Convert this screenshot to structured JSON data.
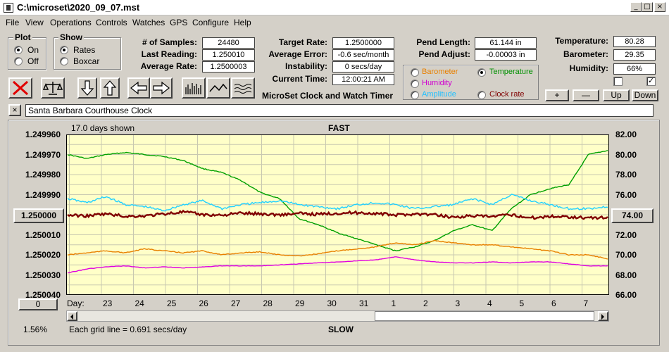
{
  "window": {
    "title": "C:\\microset\\2020_09_07.mst",
    "min": "_",
    "max": "□",
    "close": "×"
  },
  "menu": [
    "File",
    "View",
    "Operations",
    "Controls",
    "Watches",
    "GPS",
    "Configure",
    "Help"
  ],
  "plot_group": {
    "title": "Plot",
    "on": "On",
    "off": "Off",
    "selected": "On"
  },
  "show_group": {
    "title": "Show",
    "rates": "Rates",
    "boxcar": "Boxcar",
    "selected": "Rates"
  },
  "stats": {
    "samples_label": "# of Samples:",
    "samples": "24480",
    "last_label": "Last Reading:",
    "last": "1.250010",
    "avg_label": "Average Rate:",
    "avg": "1.2500003",
    "target_label": "Target Rate:",
    "target": "1.2500000",
    "avgerr_label": "Average Error:",
    "avgerr": "-0.6 sec/month",
    "instab_label": "Instability:",
    "instab": "0 secs/day",
    "time_label": "Current Time:",
    "time": "12:00:21 AM",
    "pendlen_label": "Pend Length:",
    "pendlen": "61.144 in",
    "pendadj_label": "Pend Adjust:",
    "pendadj": "-0.00003 in",
    "temp_label": "Temperature:",
    "temp": "80.28",
    "baro_label": "Barometer:",
    "baro": "29.35",
    "hum_label": "Humidity:",
    "hum": "66%"
  },
  "product_title": "MicroSet Clock and Watch Timer",
  "sensors": {
    "barometer": {
      "label": "Barometer",
      "color": "#e88000"
    },
    "temperature": {
      "label": "Temperature",
      "color": "#009000",
      "selected": true
    },
    "humidity": {
      "label": "Humidity",
      "color": "#d000d0"
    },
    "amplitude": {
      "label": "Amplitude",
      "color": "#20c0ff"
    },
    "clockrate": {
      "label": "Clock rate",
      "color": "#800000"
    }
  },
  "adjust_buttons": {
    "plus": "+",
    "minus": "—",
    "up": "Up",
    "down": "Down"
  },
  "description": {
    "close": "×",
    "text": "Santa Barbara Courthouse Clock"
  },
  "chart_data": {
    "type": "line",
    "top_label": "FAST",
    "bottom_label": "SLOW",
    "days_shown": "17.0 days shown",
    "grid_note": "Each grid line = 0.691 secs/day",
    "zoom": "1.56%",
    "x_title": "Day:",
    "x_ticks": [
      "23",
      "24",
      "25",
      "26",
      "27",
      "28",
      "29",
      "30",
      "31",
      "1",
      "2",
      "3",
      "4",
      "5",
      "6",
      "7"
    ],
    "left_ticks": [
      "1.249960",
      "1.249970",
      "1.249980",
      "1.249990",
      "1.250000",
      "1.250010",
      "1.250020",
      "1.250030",
      "1.250040"
    ],
    "left_center_button": "1.250000",
    "left_ylim": [
      1.24996,
      1.25004
    ],
    "right_ticks": [
      "82.00",
      "80.00",
      "78.00",
      "76.00",
      "74.00",
      "72.00",
      "70.00",
      "68.00",
      "66.00"
    ],
    "right_center_button": "74.00",
    "right_ylim": [
      66,
      82
    ],
    "offset_button": "0",
    "plot_bg": "#ffffc8",
    "grid": true,
    "series": [
      {
        "key": "temperature",
        "color": "#00a000",
        "values": [
          80.0,
          79.6,
          80.0,
          80.2,
          80.0,
          79.8,
          79.4,
          78.6,
          78.2,
          77.4,
          76.2,
          75.6,
          73.6,
          73.0,
          72.2,
          71.6,
          71.0,
          70.4,
          70.8,
          71.4,
          72.4,
          73.0,
          72.4,
          74.6,
          76.0,
          76.6,
          77.0,
          80.0,
          80.4
        ]
      },
      {
        "key": "amplitude",
        "color": "#20d0ff",
        "values": [
          75.6,
          75.2,
          75.8,
          75.0,
          74.8,
          74.4,
          75.0,
          75.4,
          74.6,
          75.0,
          75.2,
          75.4,
          75.0,
          74.8,
          74.6,
          75.0,
          75.2,
          75.0,
          74.6,
          74.8,
          75.0,
          75.6,
          75.0,
          76.0,
          75.4,
          75.0,
          74.6,
          74.6,
          74.8
        ]
      },
      {
        "key": "clockrate",
        "color": "#800000",
        "values": [
          1.2500002,
          1.2500006,
          1.2499996,
          1.2500008,
          1.2500006,
          1.2499996,
          1.2499986,
          1.25,
          1.2500002,
          1.2499992,
          1.2499996,
          1.25,
          1.2499994,
          1.2499998,
          1.2499992,
          1.249999,
          1.2499994,
          1.2500002,
          1.2499996,
          1.25,
          1.2500012,
          1.2500006,
          1.250001,
          1.25,
          1.2500016,
          1.2500008,
          1.250001,
          1.2500016,
          1.2500014
        ]
      },
      {
        "key": "barometer",
        "color": "#e88000",
        "values": [
          70.0,
          70.2,
          70.4,
          70.2,
          70.6,
          70.4,
          70.2,
          70.4,
          70.0,
          70.2,
          70.3,
          70.0,
          69.9,
          70.1,
          70.4,
          70.6,
          70.8,
          71.2,
          71.0,
          71.4,
          71.2,
          71.0,
          71.0,
          70.8,
          70.6,
          70.4,
          70.0,
          70.0,
          69.6
        ]
      },
      {
        "key": "humidity",
        "color": "#e000e0",
        "values": [
          68.2,
          68.6,
          68.8,
          68.9,
          68.7,
          68.8,
          68.7,
          68.8,
          68.9,
          68.9,
          68.9,
          69.0,
          69.1,
          69.2,
          69.3,
          69.4,
          69.5,
          69.8,
          69.5,
          69.3,
          69.2,
          69.2,
          69.3,
          69.2,
          69.3,
          69.3,
          69.1,
          68.9,
          68.9
        ]
      }
    ]
  }
}
